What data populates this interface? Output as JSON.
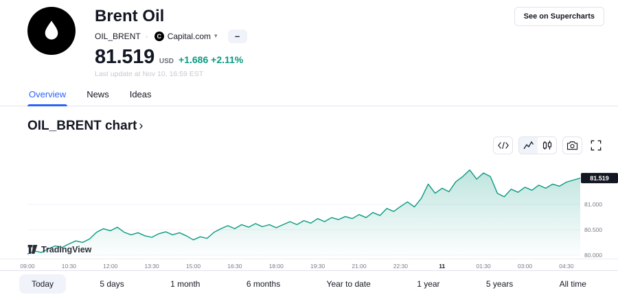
{
  "header": {
    "title": "Brent Oil",
    "symbol": "OIL_BRENT",
    "separator": "·",
    "provider_initial": "C",
    "provider": "Capital.com",
    "more_glyph": "–",
    "price": "81.519",
    "currency": "USD",
    "change_abs": "+1.686",
    "change_pct": "+2.11%",
    "last_update": "Last update at Nov 10, 16:59 EST",
    "supercharts_button": "See on Supercharts"
  },
  "tabs": [
    {
      "label": "Overview"
    },
    {
      "label": "News"
    },
    {
      "label": "Ideas"
    }
  ],
  "section": {
    "title": "OIL_BRENT chart",
    "chevron": "›"
  },
  "watermark": "TradingView",
  "ranges": [
    {
      "label": "Today"
    },
    {
      "label": "5 days"
    },
    {
      "label": "1 month"
    },
    {
      "label": "6 months"
    },
    {
      "label": "Year to date"
    },
    {
      "label": "1 year"
    },
    {
      "label": "5 years"
    },
    {
      "label": "All time"
    }
  ],
  "colors": {
    "accent_blue": "#2962ff",
    "green": "#089981",
    "badge_bg": "#131722",
    "border": "#e0e3eb",
    "muted": "#787b86"
  },
  "chart_data": {
    "type": "area",
    "title": "OIL_BRENT chart",
    "x_step_minutes": 15,
    "x_tick_minutes": [
      0,
      90,
      180,
      270,
      360,
      450,
      540,
      630,
      720,
      810,
      900,
      990,
      1080,
      1170
    ],
    "x_tick_labels": [
      "09:00",
      "10:30",
      "12:00",
      "13:30",
      "15:00",
      "16:30",
      "18:00",
      "19:30",
      "21:00",
      "22:30",
      "11",
      "01:30",
      "03:00",
      "04:30"
    ],
    "date_emphasis_label": "11",
    "values": [
      80.02,
      80.08,
      80.05,
      80.12,
      80.18,
      80.15,
      80.22,
      80.28,
      80.25,
      80.32,
      80.45,
      80.52,
      80.48,
      80.55,
      80.45,
      80.4,
      80.44,
      80.38,
      80.35,
      80.42,
      80.46,
      80.4,
      80.44,
      80.38,
      80.3,
      80.36,
      80.33,
      80.45,
      80.52,
      80.58,
      80.52,
      80.6,
      80.55,
      80.62,
      80.56,
      80.6,
      80.54,
      80.6,
      80.66,
      80.6,
      80.68,
      80.63,
      80.72,
      80.66,
      80.74,
      80.7,
      80.76,
      80.72,
      80.8,
      80.74,
      80.84,
      80.78,
      80.92,
      80.86,
      80.96,
      81.05,
      80.95,
      81.12,
      81.4,
      81.22,
      81.32,
      81.25,
      81.45,
      81.55,
      81.68,
      81.5,
      81.62,
      81.55,
      81.22,
      81.15,
      81.3,
      81.24,
      81.34,
      81.28,
      81.38,
      81.32,
      81.4,
      81.36,
      81.44,
      81.48,
      81.519
    ],
    "ylim": [
      79.93,
      81.88
    ],
    "y_ticks": [
      81.0,
      80.5,
      80.0
    ],
    "y_tick_labels": [
      "81.000",
      "80.500",
      "80.000"
    ],
    "last_price_label": "81.519",
    "line_color": "#089981"
  }
}
